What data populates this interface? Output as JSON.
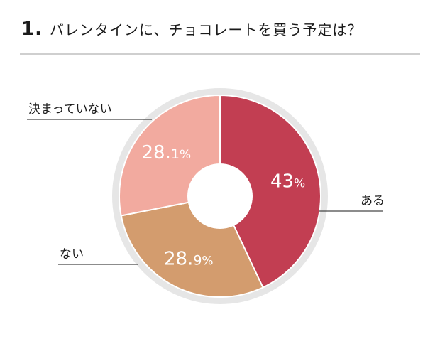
{
  "title": {
    "number": "1.",
    "text": "バレンタインに、チョコレートを買う予定は？"
  },
  "chart_data": {
    "type": "pie",
    "categories": [
      "ある",
      "ない",
      "決まっていない"
    ],
    "values": [
      43,
      28.9,
      28.1
    ],
    "value_labels": [
      {
        "num": "43",
        "unit": "%"
      },
      {
        "num": "28.",
        "small": "9",
        "unit": "%"
      },
      {
        "num": "28.",
        "small": "1",
        "unit": "%"
      }
    ],
    "colors": [
      "#c23e52",
      "#d39c6e",
      "#f2aa9f"
    ],
    "donut": true,
    "ring_color": "#e6e6e6"
  }
}
